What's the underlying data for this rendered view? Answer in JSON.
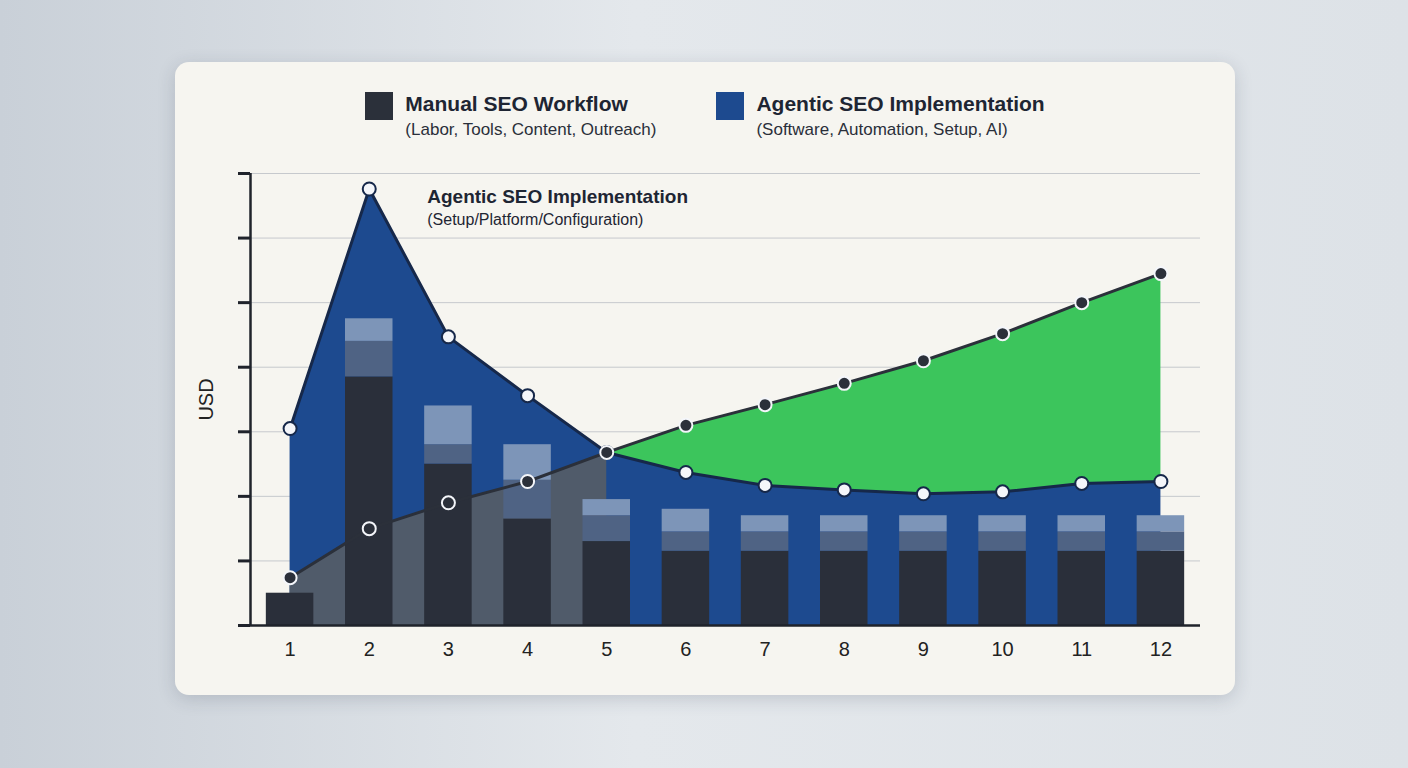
{
  "chart_data": {
    "type": "combo",
    "legend": "top",
    "grid": true,
    "tick_labels": "x",
    "stacked": true,
    "y_label": "USD",
    "x": [
      1,
      2,
      3,
      4,
      5,
      6,
      7,
      8,
      9,
      10,
      11,
      12
    ],
    "xlim": [
      0.5,
      12.5
    ],
    "xticks": [
      1,
      2,
      3,
      4,
      5,
      6,
      7,
      8,
      9,
      10,
      11,
      12
    ],
    "ylim": [
      0,
      7
    ],
    "yticks": [
      0,
      1,
      2,
      3,
      4,
      5,
      6,
      7
    ],
    "series": [
      {
        "name": "Manual SEO Workflow",
        "description": "(Labor, Tools, Content, Outreach)",
        "type": "line",
        "color": "#2b303a",
        "marker": "circle",
        "values": [
          0.74,
          1.5,
          1.9,
          2.23,
          2.68,
          3.1,
          3.42,
          3.75,
          4.1,
          4.52,
          5.0,
          5.45
        ]
      },
      {
        "name": "Agentic SEO Implementation",
        "description": "(Software, Automation, Setup, AI)",
        "type": "area",
        "color": "#1d4a8f",
        "marker": "circle",
        "values": [
          3.05,
          6.76,
          4.47,
          3.56,
          2.68,
          2.37,
          2.17,
          2.1,
          2.04,
          2.07,
          2.2,
          2.23
        ]
      }
    ],
    "stacked_bars": [
      {
        "color": "#2a2f3a",
        "values": [
          0.5,
          3.85,
          2.5,
          1.65,
          1.3,
          1.15,
          1.15,
          1.15,
          1.15,
          1.15,
          1.15,
          1.15
        ]
      },
      {
        "color": "#4f6384",
        "values": [
          0,
          0.55,
          0.3,
          0.6,
          0.4,
          0.3,
          0.3,
          0.3,
          0.3,
          0.3,
          0.3,
          0.3
        ]
      },
      {
        "color": "#7d95b8",
        "values": [
          0,
          0.35,
          0.6,
          0.55,
          0.25,
          0.35,
          0.25,
          0.25,
          0.25,
          0.25,
          0.25,
          0.25
        ]
      }
    ],
    "annotations": [
      {
        "text": "Agentic SEO Implementation",
        "subtext": "(Setup/Platform/Configuration)",
        "x": 2,
        "series": "Agentic SEO Implementation"
      }
    ]
  }
}
